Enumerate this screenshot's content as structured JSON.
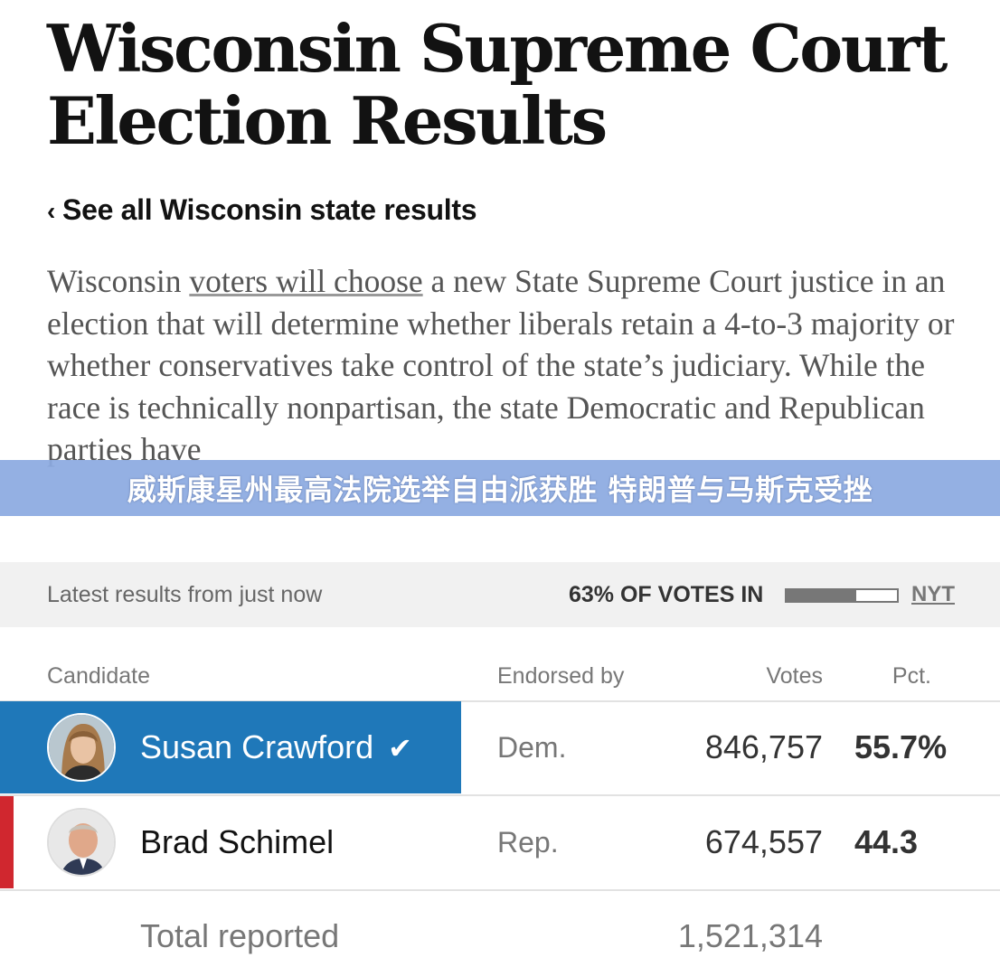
{
  "page": {
    "title": "Wisconsin Supreme Court Election Results",
    "back_link": "See all Wisconsin state results",
    "intro": {
      "start": "Wisconsin ",
      "link": "voters will choose",
      "end": " a new State Supreme Court justice in an election that will determine whether liberals retain a 4-to-3 majority or whether conservatives take control of the state’s judiciary. While the race is technically nonpartisan, the state Democratic and Republican parties have"
    }
  },
  "overlay_banner": "威斯康星州最高法院选举自由派获胜 特朗普与马斯克受挫",
  "results": {
    "updated": "Latest results from just now",
    "votes_in_label": "63% OF VOTES IN",
    "votes_in_fraction": 0.63,
    "source": "NYT",
    "columns": {
      "candidate": "Candidate",
      "endorsed": "Endorsed by",
      "votes": "Votes",
      "pct": "Pct."
    },
    "candidates": [
      {
        "name": "Susan Crawford",
        "party": "Dem.",
        "votes": "846,757",
        "pct": "55.7%",
        "winner": true,
        "check": "✔"
      },
      {
        "name": "Brad Schimel",
        "party": "Rep.",
        "votes": "674,557",
        "pct": "44.3",
        "winner": false
      }
    ],
    "total_label": "Total reported",
    "total_votes": "1,521,314"
  },
  "colors": {
    "dem_winner": "#1f78b9",
    "rep": "#d0272f",
    "banner": "#8caae1"
  }
}
